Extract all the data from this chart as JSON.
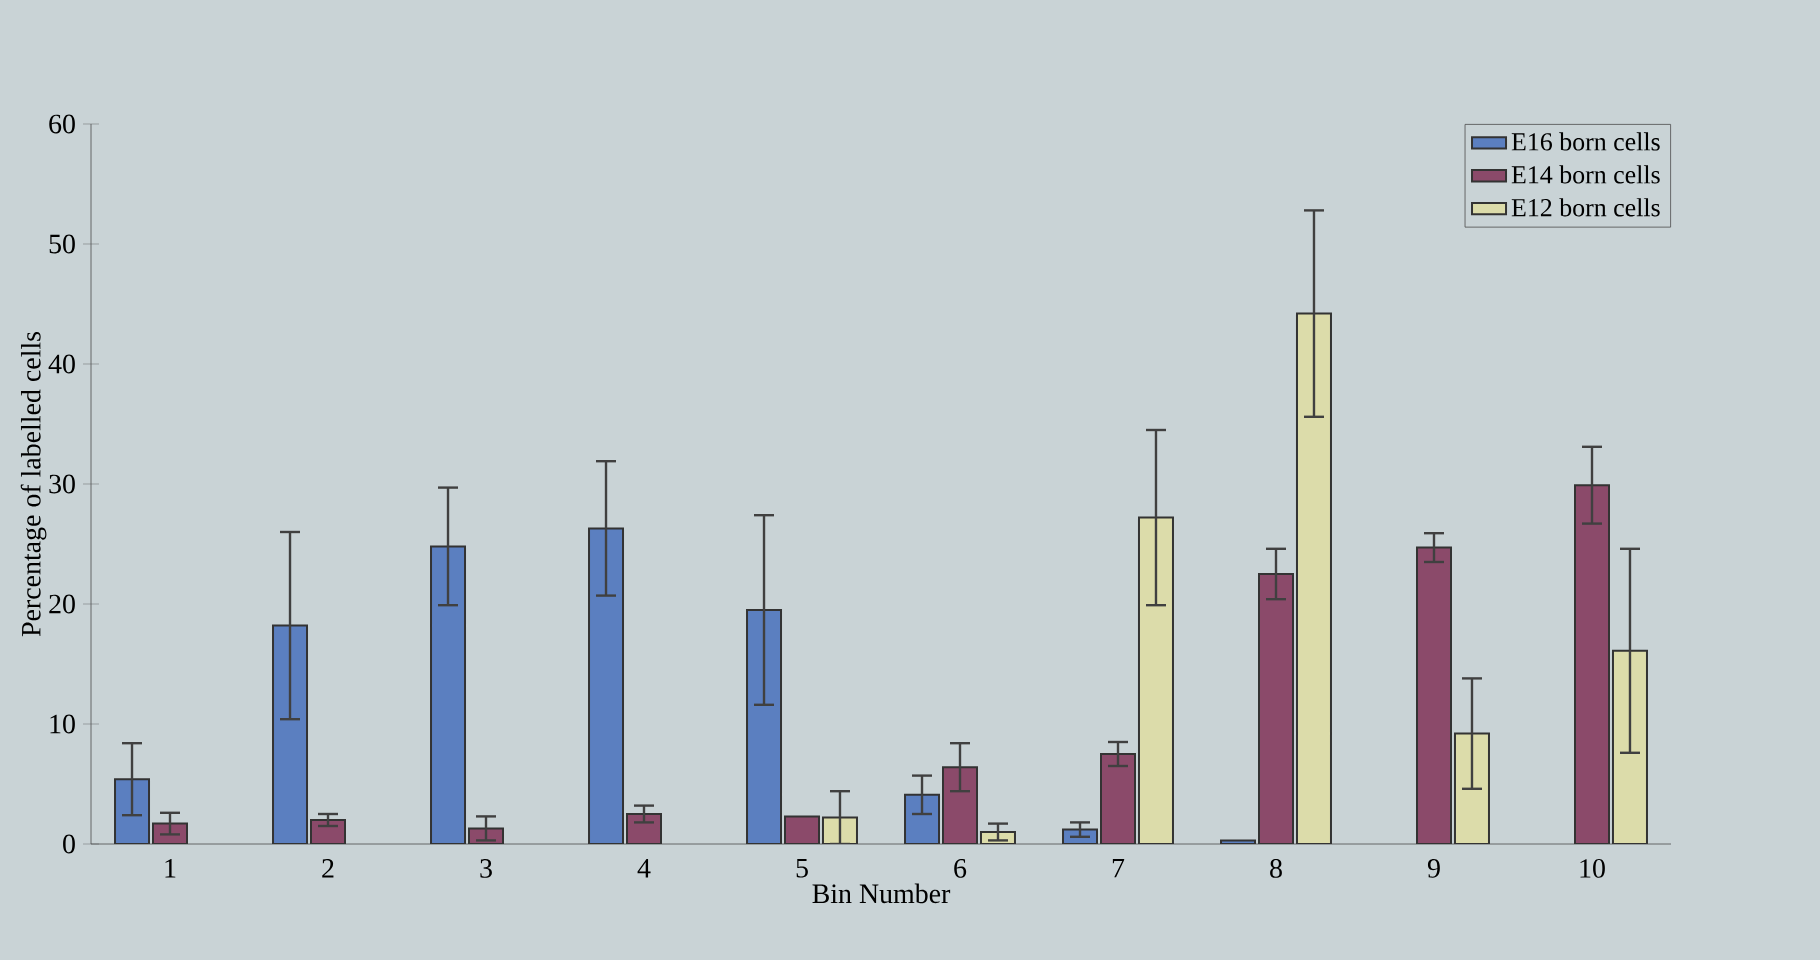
{
  "chart_data": {
    "type": "bar",
    "xlabel": "Bin Number",
    "ylabel": "Percentage of labelled cells",
    "categories": [
      "1",
      "2",
      "3",
      "4",
      "5",
      "6",
      "7",
      "8",
      "9",
      "10"
    ],
    "series": [
      {
        "name": "E16 born cells",
        "color": "#5b7fc0",
        "values": [
          5.4,
          18.2,
          24.8,
          26.3,
          19.5,
          4.1,
          1.2,
          0.3,
          null,
          null
        ],
        "errors": [
          3.0,
          7.8,
          4.9,
          5.6,
          7.9,
          1.6,
          0.6,
          null,
          null,
          null
        ]
      },
      {
        "name": "E14 born cells",
        "color": "#8b4a6a",
        "values": [
          1.7,
          2.0,
          1.3,
          2.5,
          2.3,
          6.4,
          7.5,
          22.5,
          24.7,
          29.9
        ],
        "errors": [
          0.9,
          0.5,
          1.0,
          0.7,
          null,
          2.0,
          1.0,
          2.1,
          1.2,
          3.2
        ]
      },
      {
        "name": "E12 born cells",
        "color": "#dcdcaa",
        "values": [
          null,
          null,
          null,
          null,
          2.2,
          1.0,
          27.2,
          44.2,
          9.2,
          16.1
        ],
        "errors": [
          null,
          null,
          null,
          null,
          2.2,
          0.7,
          7.3,
          8.6,
          4.6,
          8.5
        ]
      }
    ],
    "ylim": [
      0,
      60
    ],
    "yticks": [
      0,
      10,
      20,
      30,
      40,
      50,
      60
    ],
    "legend": "top right"
  }
}
